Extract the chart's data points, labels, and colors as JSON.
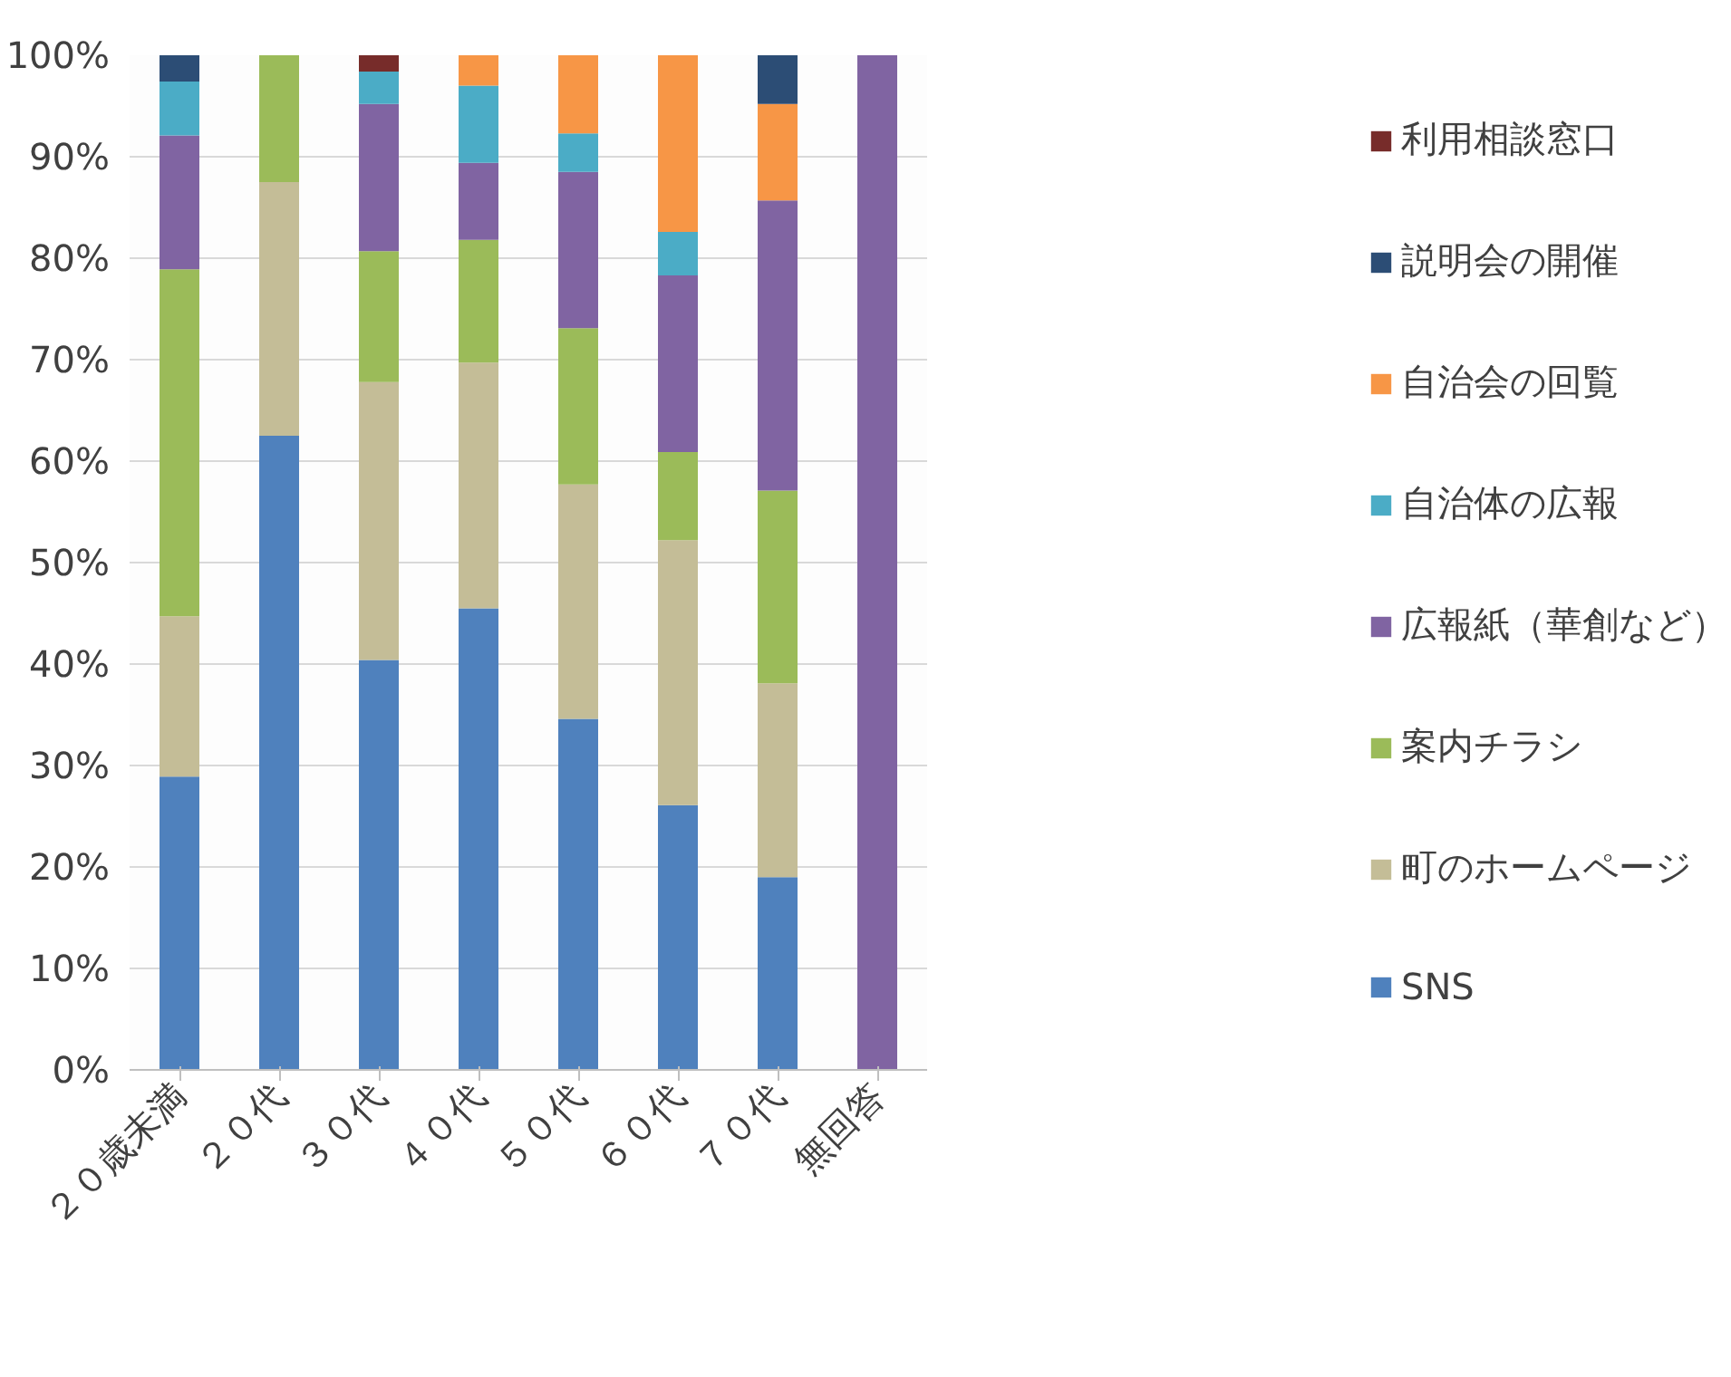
{
  "chart_data": {
    "type": "bar",
    "stacked": true,
    "categories": [
      "２０歳未満",
      "２０代",
      "３０代",
      "４０代",
      "５０代",
      "６０代",
      "７０代",
      "無回答"
    ],
    "series": [
      {
        "name": "SNS",
        "color": "#4f81bd",
        "values": [
          28.9,
          62.5,
          40.4,
          45.5,
          34.6,
          26.1,
          19.0,
          0
        ]
      },
      {
        "name": "町のホームページ",
        "color": "#c4bd97",
        "values": [
          15.8,
          25.0,
          27.4,
          24.2,
          23.1,
          26.1,
          19.1,
          0
        ]
      },
      {
        "name": "案内チラシ",
        "color": "#9bbb59",
        "values": [
          34.2,
          12.5,
          12.9,
          12.1,
          15.4,
          8.7,
          19.0,
          0
        ]
      },
      {
        "name": "広報紙（華創など）",
        "color": "#8064a2",
        "values": [
          13.2,
          0,
          14.5,
          7.6,
          15.4,
          17.4,
          28.6,
          100
        ]
      },
      {
        "name": "自治体の広報",
        "color": "#4bacc6",
        "values": [
          5.3,
          0,
          3.2,
          7.6,
          3.8,
          4.3,
          0,
          0
        ]
      },
      {
        "name": "自治会の回覧",
        "color": "#f79646",
        "values": [
          0,
          0,
          0,
          3.0,
          7.7,
          17.4,
          9.5,
          0
        ]
      },
      {
        "name": "説明会の開催",
        "color": "#2c4d75",
        "values": [
          2.6,
          0,
          0,
          0,
          0,
          0,
          4.8,
          0
        ]
      },
      {
        "name": "利用相談窓口",
        "color": "#772c2a",
        "values": [
          0,
          0,
          1.6,
          0,
          0,
          0,
          0,
          0
        ]
      }
    ],
    "ylim": [
      0,
      100
    ],
    "yticks": [
      {
        "value": 0,
        "label": "0%"
      },
      {
        "value": 10,
        "label": "10%"
      },
      {
        "value": 20,
        "label": "20%"
      },
      {
        "value": 30,
        "label": "30%"
      },
      {
        "value": 40,
        "label": "40%"
      },
      {
        "value": 50,
        "label": "50%"
      },
      {
        "value": 60,
        "label": "60%"
      },
      {
        "value": 70,
        "label": "70%"
      },
      {
        "value": 80,
        "label": "80%"
      },
      {
        "value": 90,
        "label": "90%"
      },
      {
        "value": 100,
        "label": "100%"
      }
    ],
    "grid": "y",
    "legend": "right"
  }
}
